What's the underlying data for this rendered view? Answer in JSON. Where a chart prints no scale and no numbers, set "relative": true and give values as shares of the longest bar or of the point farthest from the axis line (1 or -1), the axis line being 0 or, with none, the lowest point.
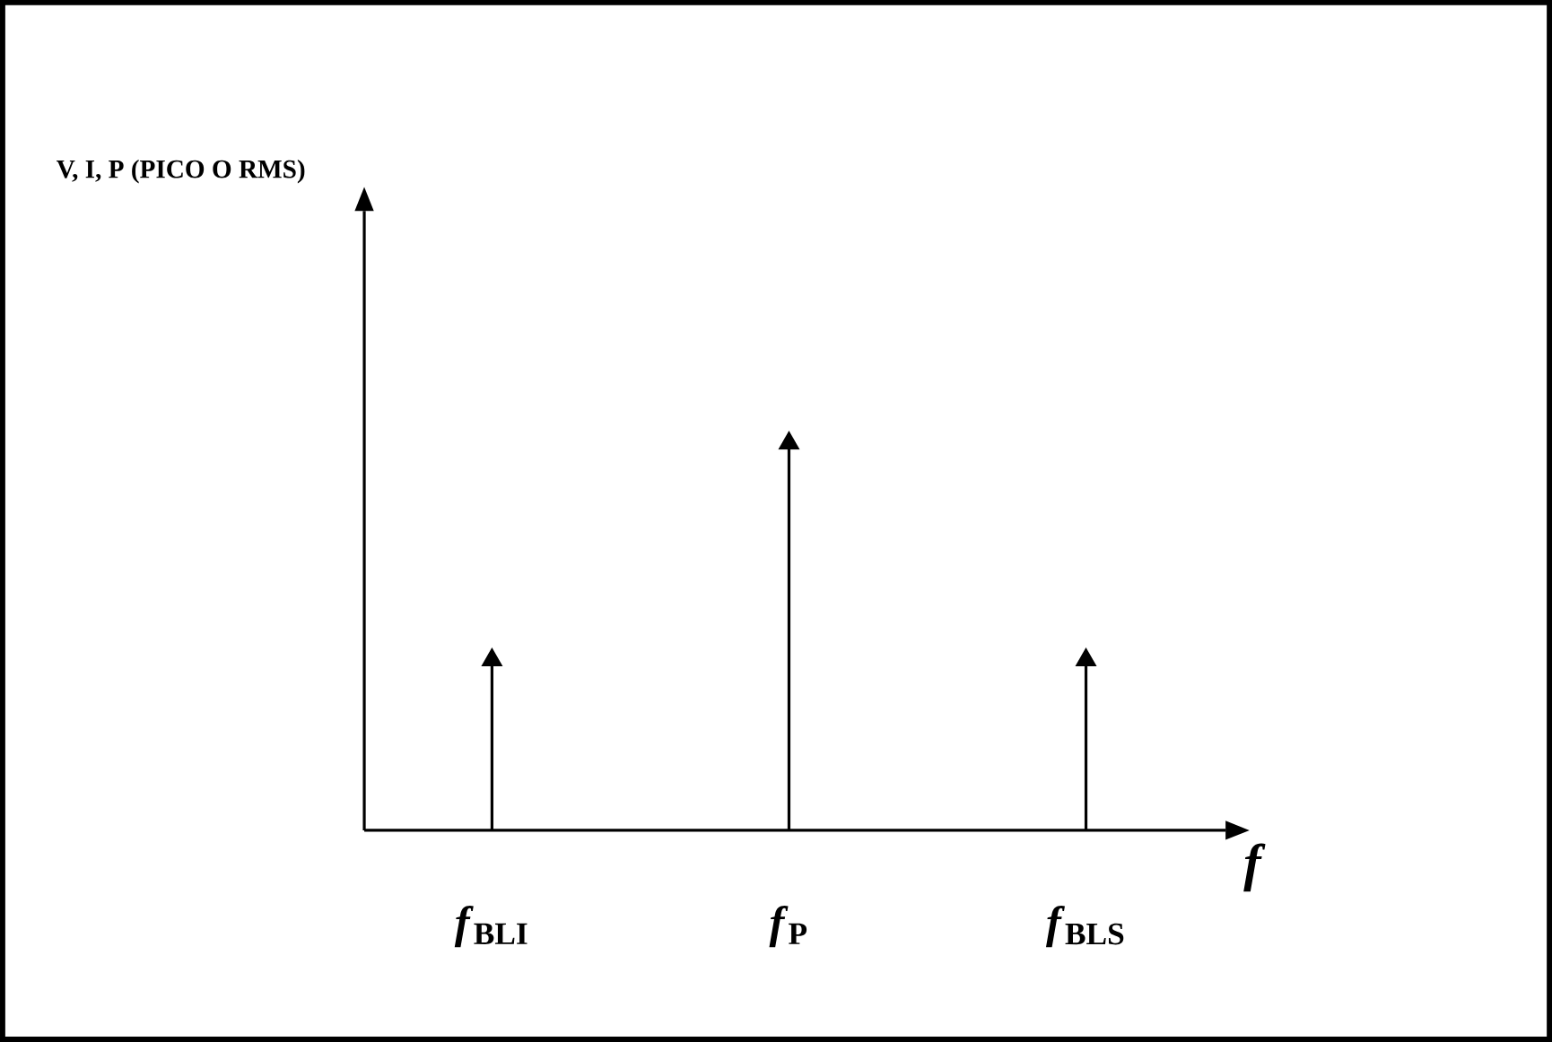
{
  "chart_data": {
    "type": "lollipop",
    "relative": true,
    "title": "V, I, P (PICO O RMS)",
    "xlabel": "f",
    "categories": [
      "*f*$_{BLI}$",
      "*f*$_{P}$",
      "*f*$_{BLS}$"
    ],
    "series": [
      {
        "color": "#000000",
        "values": [
          0.44,
          1,
          0.44
        ]
      }
    ],
    "marker": "triangle"
  }
}
